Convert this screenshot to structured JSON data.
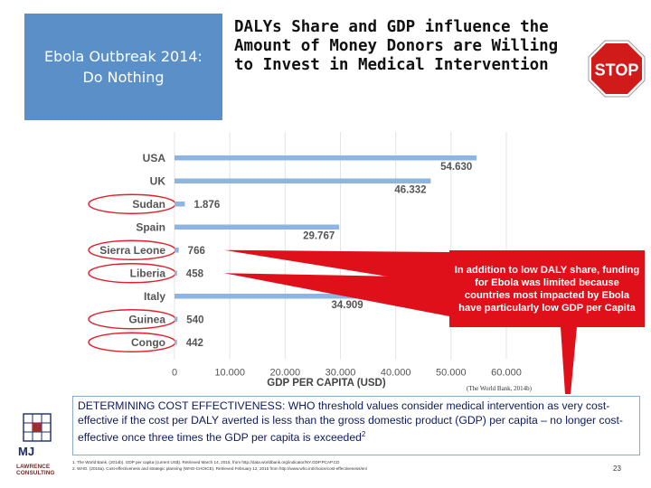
{
  "badge": {
    "line1": "Ebola Outbreak 2014:",
    "line2": "Do Nothing"
  },
  "title": "DALYs Share and GDP influence the Amount of Money Donors are Willing to Invest in Medical Intervention",
  "stop_sign": {
    "label": "STOP",
    "color": "#d11a1a"
  },
  "chart_data": {
    "type": "bar",
    "orientation": "horizontal",
    "categories": [
      "USA",
      "UK",
      "Sudan",
      "Spain",
      "Sierra Leone",
      "Liberia",
      "Italy",
      "Guinea",
      "Congo"
    ],
    "values": [
      54630,
      46332,
      1876,
      29767,
      766,
      458,
      34909,
      540,
      442
    ],
    "value_labels": [
      "54.630",
      "46.332",
      "1.876",
      "29.767",
      "766",
      "458",
      "34.909",
      "540",
      "442"
    ],
    "highlighted": [
      "Sudan",
      "Sierra Leone",
      "Liberia",
      "Guinea",
      "Congo"
    ],
    "xlabel": "GDP PER CAPITA (USD)",
    "xlim": [
      0,
      60000
    ],
    "xticks": [
      "0",
      "10.000",
      "20.000",
      "30.000",
      "40.000",
      "50.000",
      "60.000"
    ],
    "grid": true,
    "bar_color": "#8db4e2",
    "highlight_color": "#e0202a"
  },
  "callout": {
    "text": "In addition to low DALY share, funding for Ebola was limited because countries most impacted by Ebola have particularly low GDP per Capita",
    "color": "#e0101a"
  },
  "chart_source": "(The World Bank, 2014b)",
  "effectiveness": {
    "text": "DETERMINING COST EFFECTIVENESS: WHO threshold values consider medical intervention as very cost-effective if the cost per DALY averted is less than the gross domestic product (GDP) per capita – no longer cost-effective once three times the GDP per capita is exceeded",
    "superscript": "2"
  },
  "logo": {
    "initials": "MJ",
    "line1": "LAWRENCE",
    "line2": "CONSULTING",
    "color": "#7b2a2a"
  },
  "footnotes": [
    "1. The World Bank. (2014b). GDP per capita (current US$). Retrieved March 14, 2015, from http://data.worldbank.org/indicator/NY.GDP.PCAP.CD",
    "2. WHO. (2015a). Cost-effectiveness and strategic planning (WHO-CHOICE). Retrieved February 12, 2015 from http://www.who.int/choice/cost-effectiveness/en/"
  ],
  "page_number": "23"
}
